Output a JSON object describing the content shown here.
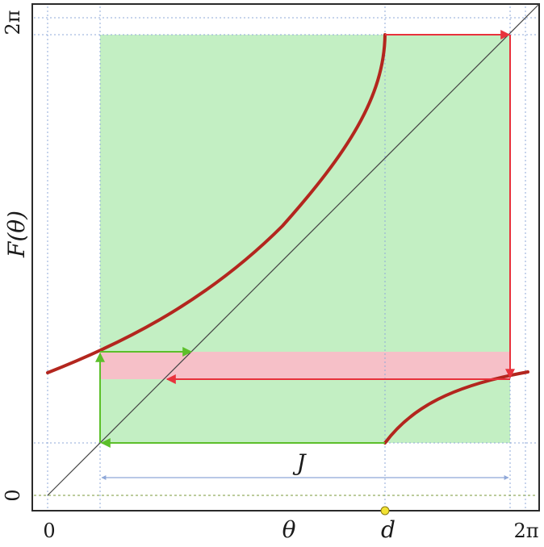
{
  "labels": {
    "x_axis": "θ",
    "y_axis": "F(θ)",
    "x_tick_0": "0",
    "x_tick_d": "d",
    "x_tick_2pi": "2π",
    "y_tick_0": "0",
    "y_tick_2pi": "2π",
    "interval": "J"
  },
  "colors": {
    "curve": "#b3261e",
    "red_arrow": "#e8323c",
    "green_arrow": "#5cbf2a",
    "green_region": "#b8ecb8",
    "pink_band": "#f6c0c8",
    "diagonal": "#444444",
    "guide": "#8fa8d8",
    "d_marker": "#f2e233"
  }
}
